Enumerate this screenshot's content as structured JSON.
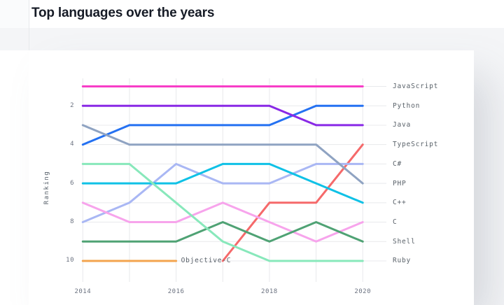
{
  "page": {
    "title": "Top languages over the years"
  },
  "chart_data": {
    "type": "line",
    "subtype": "bump-ranking-chart",
    "x": [
      2014,
      2015,
      2016,
      2017,
      2018,
      2019,
      2020
    ],
    "x_axis_labels": [
      "2014",
      "2016",
      "2018",
      "2020"
    ],
    "ylabel": "Ranking",
    "y_ticks": [
      "2",
      "4",
      "6",
      "8",
      "10"
    ],
    "ylim": [
      1,
      10
    ],
    "y_inverted": true,
    "grid": true,
    "legend_position": "right",
    "grid_color": "#e8e9ec",
    "series": [
      {
        "name": "JavaScript",
        "color": "#f83dc7",
        "ranks": [
          1,
          1,
          1,
          1,
          1,
          1,
          1
        ]
      },
      {
        "name": "Python",
        "color": "#2471f2",
        "ranks": [
          4,
          3,
          3,
          3,
          3,
          2,
          2
        ]
      },
      {
        "name": "Java",
        "color": "#8929e6",
        "ranks": [
          2,
          2,
          2,
          2,
          2,
          3,
          3
        ]
      },
      {
        "name": "TypeScript",
        "color": "#f5696a",
        "ranks": [
          null,
          null,
          null,
          10,
          7,
          7,
          4
        ]
      },
      {
        "name": "C#",
        "color": "#a9b7f4",
        "ranks": [
          8,
          7,
          5,
          6,
          6,
          5,
          5
        ]
      },
      {
        "name": "PHP",
        "color": "#8fa3c2",
        "ranks": [
          3,
          4,
          4,
          4,
          4,
          4,
          6
        ]
      },
      {
        "name": "C++",
        "color": "#0fc1e6",
        "ranks": [
          6,
          6,
          6,
          5,
          5,
          6,
          7
        ]
      },
      {
        "name": "C",
        "color": "#f7a4ec",
        "ranks": [
          7,
          8,
          8,
          7,
          8,
          9,
          8
        ]
      },
      {
        "name": "Shell",
        "color": "#4fa274",
        "ranks": [
          9,
          9,
          9,
          8,
          9,
          8,
          9
        ]
      },
      {
        "name": "Ruby",
        "color": "#88e8bb",
        "ranks": [
          5,
          5,
          7,
          9,
          10,
          10,
          10
        ]
      },
      {
        "name": "Objective-C",
        "color": "#f3a44e",
        "ranks": [
          10,
          10,
          10,
          null,
          null,
          null,
          null
        ],
        "inline_label": true
      }
    ]
  }
}
